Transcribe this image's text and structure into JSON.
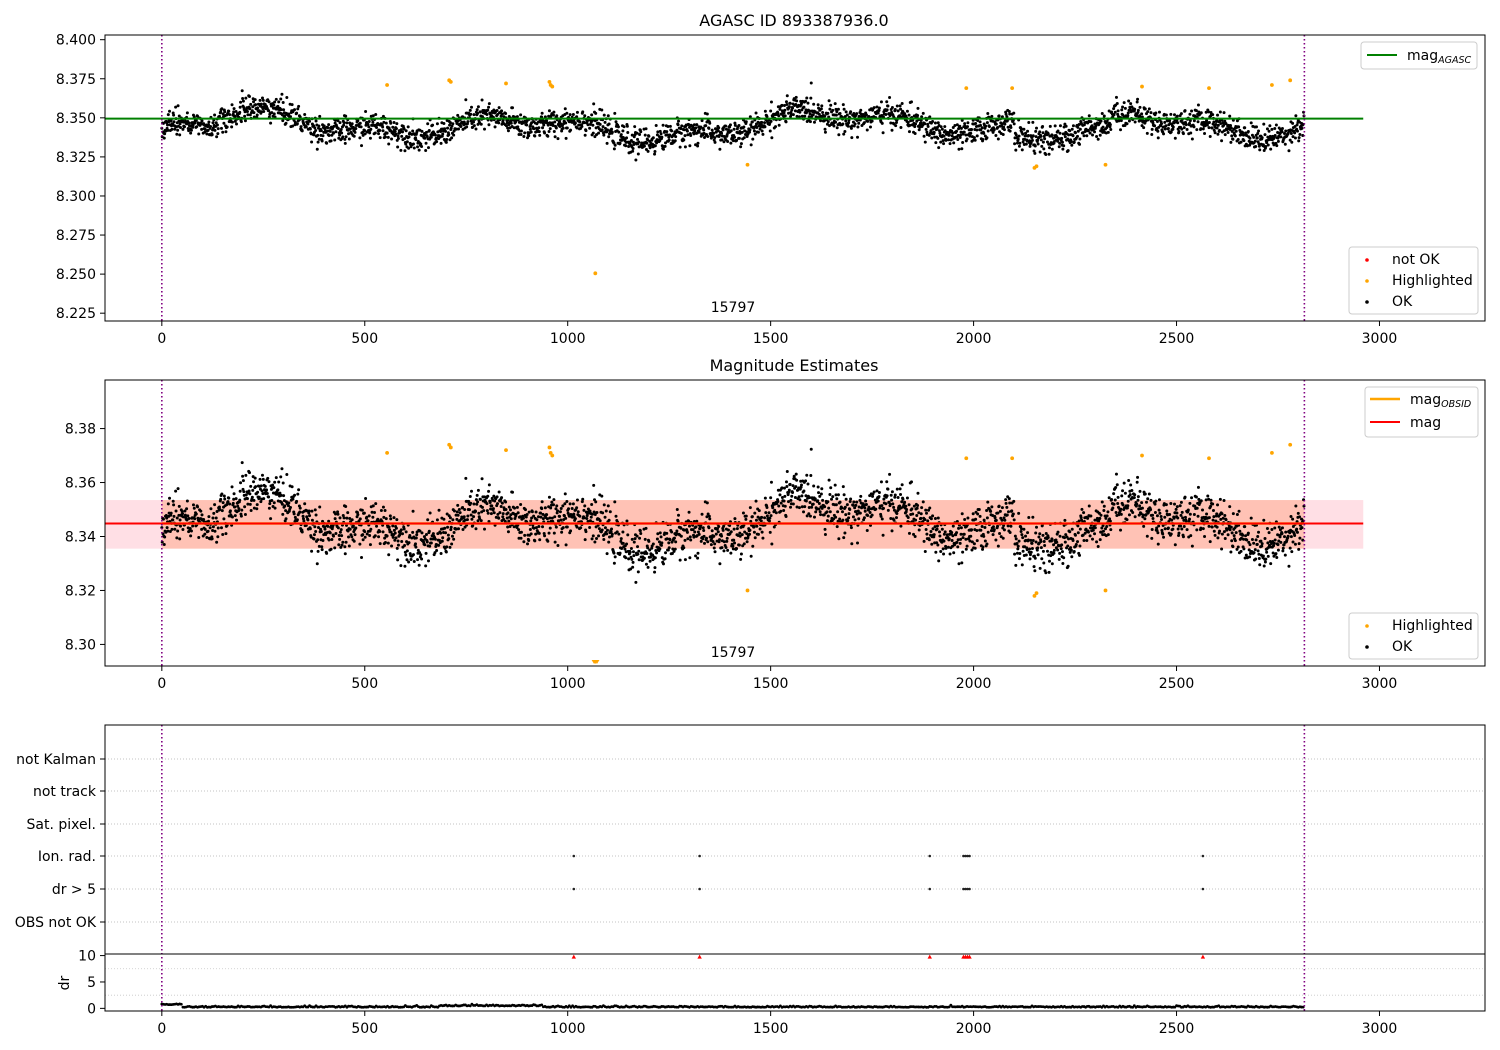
{
  "chart_data": [
    {
      "type": "scatter",
      "title": "AGASC ID 893387936.0",
      "annotation": "15797",
      "x_ticks": [
        "0",
        "500",
        "1000",
        "1500",
        "2000",
        "2500",
        "3000"
      ],
      "y_ticks": [
        "8.225",
        "8.250",
        "8.275",
        "8.300",
        "8.325",
        "8.350",
        "8.375",
        "8.400"
      ],
      "xlim": [
        -140,
        3260
      ],
      "ylim": [
        8.22,
        8.403
      ],
      "obs_boundaries": [
        0,
        2815
      ],
      "reference_line": {
        "name": "mag",
        "subscript": "AGASC",
        "value": 8.3495,
        "color": "#008000",
        "x_range": [
          -140,
          2960
        ]
      },
      "legend_line": {
        "label": "mag",
        "subscript": "AGASC"
      },
      "legend_markers": [
        {
          "label": "not OK",
          "color": "#ff0000"
        },
        {
          "label": "Highlighted",
          "color": "#ffa500"
        },
        {
          "label": "OK",
          "color": "#000000"
        }
      ],
      "series": [
        {
          "name": "OK",
          "color": "#000000",
          "samples": 2815,
          "x_range": [
            0,
            2815
          ],
          "baseline_mean": 8.3452,
          "baseline_scatter": 0.0075
        },
        {
          "name": "Highlighted",
          "color": "#ffa500",
          "x": [
            555,
            708,
            712,
            848,
            955,
            958,
            962,
            1068,
            1443,
            1982,
            2095,
            2150,
            2155,
            2325,
            2415,
            2580,
            2735,
            2780
          ],
          "y": [
            8.371,
            8.374,
            8.373,
            8.372,
            8.373,
            8.371,
            8.37,
            8.2505,
            8.32,
            8.369,
            8.369,
            8.318,
            8.319,
            8.32,
            8.37,
            8.369,
            8.371,
            8.374
          ]
        }
      ]
    },
    {
      "type": "scatter",
      "title": "Magnitude Estimates",
      "annotation": "15797",
      "x_ticks": [
        "0",
        "500",
        "1000",
        "1500",
        "2000",
        "2500",
        "3000"
      ],
      "y_ticks": [
        "8.30",
        "8.32",
        "8.34",
        "8.36",
        "8.38"
      ],
      "xlim": [
        -140,
        3260
      ],
      "ylim": [
        8.292,
        8.398
      ],
      "obs_boundaries": [
        0,
        2815
      ],
      "mean_line": {
        "name": "mag",
        "value": 8.3448,
        "color": "#ff0000",
        "x_range": [
          -140,
          2960
        ]
      },
      "obsid_line": {
        "name": "mag",
        "subscript": "OBSID",
        "value": 8.3448,
        "color": "#ffa500",
        "x_range": [
          0,
          2815
        ]
      },
      "band_outer": {
        "low": 8.3355,
        "high": 8.3535,
        "color": "#ffc0cb"
      },
      "band_inner": {
        "low": 8.3355,
        "high": 8.3535,
        "color": "#ffa07a"
      },
      "legend_lines": [
        {
          "label": "mag",
          "subscript": "OBSID",
          "color": "#ffa500"
        },
        {
          "label": "mag",
          "color": "#ff0000"
        }
      ],
      "legend_markers": [
        {
          "label": "Highlighted",
          "color": "#ffa500"
        },
        {
          "label": "OK",
          "color": "#000000"
        }
      ],
      "series": [
        {
          "name": "OK",
          "color": "#000000",
          "samples": 2815,
          "x_range": [
            0,
            2815
          ],
          "baseline_mean": 8.3452,
          "baseline_scatter": 0.0075
        },
        {
          "name": "Highlighted",
          "color": "#ffa500",
          "x": [
            555,
            708,
            712,
            848,
            955,
            958,
            962,
            1443,
            1982,
            2095,
            2150,
            2155,
            2325,
            2415,
            2580,
            2735,
            2780
          ],
          "y": [
            8.371,
            8.374,
            8.373,
            8.372,
            8.373,
            8.371,
            8.37,
            8.32,
            8.369,
            8.369,
            8.318,
            8.319,
            8.32,
            8.37,
            8.369,
            8.371,
            8.374
          ]
        }
      ],
      "clipped_markers": {
        "x": [
          1065,
          1068,
          1072
        ],
        "color": "#ffa500"
      }
    },
    {
      "type": "scatter",
      "title": "",
      "x_ticks": [
        "0",
        "500",
        "1000",
        "1500",
        "2000",
        "2500",
        "3000"
      ],
      "xlim": [
        -140,
        3260
      ],
      "obs_boundaries": [
        0,
        2815
      ],
      "flag_rows": [
        "not Kalman",
        "not track",
        "Sat. pixel.",
        "Ion. rad.",
        "dr > 5",
        "OBS not OK"
      ],
      "flag_events": [
        {
          "row": "Ion. rad.",
          "x": [
            1015,
            1325,
            1892,
            1975,
            1980,
            1985,
            1990,
            2565
          ]
        },
        {
          "row": "dr > 5",
          "x": [
            1015,
            1325,
            1892,
            1975,
            1980,
            1985,
            1990,
            2565
          ]
        }
      ],
      "dr_panel": {
        "ylabel": "dr",
        "y_ticks": [
          "0",
          "5",
          "10"
        ],
        "ylim": [
          -0.5,
          10.3
        ],
        "clipped_markers": {
          "x": [
            1015,
            1325,
            1892,
            1975,
            1980,
            1985,
            1990,
            2565
          ],
          "color": "#ff0000"
        },
        "baseline": 0.2
      }
    }
  ]
}
